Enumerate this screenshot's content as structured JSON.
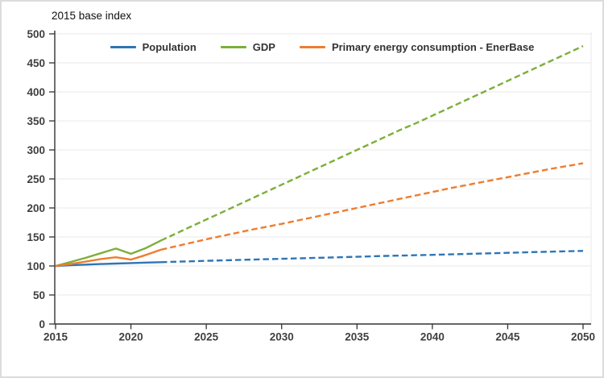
{
  "frame": {
    "background": "#ffffff",
    "border_color": "#dcdcdc"
  },
  "styles": {
    "axis_color": "#333333",
    "grid_color": "#e9e9e9",
    "tick_label_color": "#3f3f3f",
    "title_color": "#111111",
    "series_colors": {
      "population": "#2E75B6",
      "gdp": "#7CAF3A",
      "energy": "#ED7D31"
    }
  },
  "chart_data": {
    "type": "line",
    "title": "2015 base index",
    "xlabel": "",
    "ylabel": "",
    "ylim": [
      0,
      500
    ],
    "yticks": [
      0,
      50,
      100,
      150,
      200,
      250,
      300,
      350,
      400,
      450,
      500
    ],
    "xticks": [
      2015,
      2020,
      2025,
      2030,
      2035,
      2040,
      2045,
      2050
    ],
    "grid": "horizontal",
    "legend_position": "top",
    "projection_start": 2022,
    "line_style_note": "solid lines 2015-2022 (historical), dashed lines 2022-2050 (projection)",
    "x": [
      2015,
      2016,
      2017,
      2018,
      2019,
      2020,
      2021,
      2022,
      2023,
      2024,
      2025,
      2026,
      2027,
      2028,
      2029,
      2030,
      2031,
      2032,
      2033,
      2034,
      2035,
      2036,
      2037,
      2038,
      2039,
      2040,
      2041,
      2042,
      2043,
      2044,
      2045,
      2046,
      2047,
      2048,
      2049,
      2050
    ],
    "series": [
      {
        "name": "Population",
        "color": "#2E75B6",
        "values": [
          100,
          101.2,
          102.3,
          103.3,
          104.2,
          105,
          105.8,
          106.5,
          107.3,
          108.1,
          108.9,
          109.6,
          110.3,
          111,
          111.7,
          112.4,
          113.1,
          113.8,
          114.5,
          115.2,
          115.9,
          116.6,
          117.3,
          117.9,
          118.6,
          119.2,
          119.9,
          120.6,
          121.3,
          122,
          122.7,
          123.4,
          124.1,
          124.7,
          125.4,
          126
        ]
      },
      {
        "name": "GDP",
        "color": "#7CAF3A",
        "values": [
          100,
          107,
          114,
          122,
          130,
          121,
          131,
          144,
          156,
          168,
          180,
          192,
          204,
          216,
          228,
          240,
          252,
          264,
          276,
          288,
          300,
          312,
          324,
          336,
          347,
          359,
          371,
          383,
          395,
          407,
          419,
          431,
          443,
          455,
          467,
          479
        ]
      },
      {
        "name": "Primary energy consumption - EnerBase",
        "color": "#ED7D31",
        "values": [
          100,
          103.5,
          107.5,
          112,
          115,
          111,
          119,
          128,
          134,
          140,
          146,
          151.5,
          157,
          162.5,
          167.5,
          172.5,
          178,
          183.5,
          189,
          194.5,
          200,
          205.5,
          211,
          216.5,
          222,
          227.5,
          233,
          238,
          243,
          248,
          253,
          258,
          263,
          268,
          272.5,
          277
        ]
      }
    ]
  }
}
